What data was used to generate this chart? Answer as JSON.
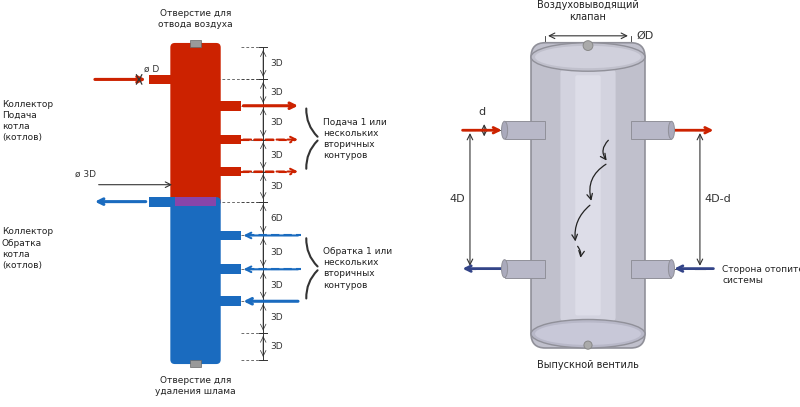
{
  "bg_color": "#ffffff",
  "left_diagram": {
    "title_top": "Отверстие для\nотвода воздуха",
    "title_bottom": "Отверстие для\nудаления шлама",
    "label_left_top": "Коллектор\nПодача\nкотла\n(котлов)",
    "label_left_bottom": "Коллектор\nОбратка\nкотла\n(котлов)",
    "label_od": "ø D",
    "label_3d": "ø 3D",
    "label_right_top": "Подача 1 или\nнескольких\nвторичных\nконтуров",
    "label_right_bottom": "Обратка 1 или\nнескольких\nвторичных\nконтуров",
    "red_color": "#cc2200",
    "blue_color": "#1a6bbf"
  },
  "right_diagram": {
    "title_top": "Воздуховыводящий\nклапан",
    "title_bottom": "Выпускной вентиль",
    "label_phiD": "ØD",
    "label_d": "d",
    "label_4D": "4D",
    "label_4Dd": "4D-d",
    "label_side": "Сторона отопительной\nсистемы",
    "arrow_red": "#cc2200",
    "arrow_blue": "#334488"
  }
}
